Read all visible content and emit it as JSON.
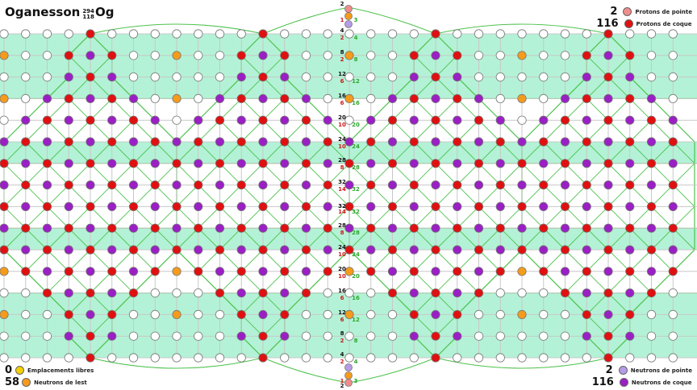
{
  "title": {
    "name": "Oganesson",
    "mass_number": "294",
    "atomic_number": "118",
    "symbol": "Og"
  },
  "legend": {
    "top_right": [
      {
        "count": "2",
        "label": "Protons de pointe",
        "color": "#f08c8c"
      },
      {
        "count": "116",
        "label": "Protons de coque",
        "color": "#e01010"
      }
    ],
    "bottom_left": [
      {
        "count": "0",
        "label": "Emplacements libres",
        "color": "#f5d000"
      },
      {
        "count": "58",
        "label": "Neutrons de lest",
        "color": "#f59b1b"
      }
    ],
    "bottom_right": [
      {
        "count": "2",
        "label": "Neutrons de pointe",
        "color": "#b59ce6"
      },
      {
        "count": "116",
        "label": "Neutrons de coque",
        "color": "#9a1fc4"
      }
    ]
  },
  "colors": {
    "band": "#b3f2d6",
    "band_line": "#4fc24f",
    "grid": "#c8c8c8",
    "empty_node": "#ffffff",
    "proton": "#e01010",
    "neutron": "#9a1fc4",
    "ballast": "#f59b1b",
    "tip_proton": "#f08c8c",
    "tip_neutron": "#b59ce6"
  },
  "spine": {
    "top": [
      {
        "black": "2",
        "red": "",
        "green": ""
      },
      {
        "black": "",
        "red": "1",
        "green": "3"
      },
      {
        "black": "4",
        "red": "2",
        "green": "4"
      },
      {
        "black": "8",
        "red": "2",
        "green": "8"
      },
      {
        "black": "12",
        "red": "6",
        "green": "12"
      },
      {
        "black": "16",
        "red": "6",
        "green": "16"
      },
      {
        "black": "20",
        "red": "10",
        "green": "20"
      },
      {
        "black": "24",
        "red": "10",
        "green": "24"
      },
      {
        "black": "28",
        "red": "8",
        "green": "28"
      },
      {
        "black": "32",
        "red": "14",
        "green": "32"
      }
    ],
    "bottom": [
      {
        "black": "32",
        "red": "14",
        "green": "32"
      },
      {
        "black": "28",
        "red": "8",
        "green": "28"
      },
      {
        "black": "24",
        "red": "10",
        "green": "24"
      },
      {
        "black": "20",
        "red": "10",
        "green": "20"
      },
      {
        "black": "16",
        "red": "6",
        "green": "16"
      },
      {
        "black": "12",
        "red": "6",
        "green": "12"
      },
      {
        "black": "8",
        "red": "2",
        "green": "8"
      },
      {
        "black": "4",
        "red": "2",
        "green": "4"
      },
      {
        "black": "",
        "red": "1",
        "green": "3"
      },
      {
        "black": "2",
        "red": "",
        "green": ""
      }
    ]
  }
}
